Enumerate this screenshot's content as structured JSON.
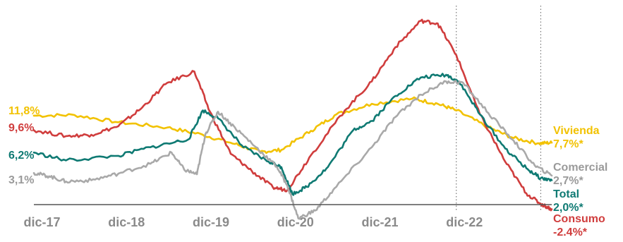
{
  "chart_data": {
    "type": "line",
    "title": "",
    "xlabel": "",
    "ylabel": "",
    "x_ticks": [
      "dic-17",
      "dic-18",
      "dic-19",
      "dic-20",
      "dic-21",
      "dic-22"
    ],
    "x_range": [
      2017.92,
      2024.05
    ],
    "y_range": [
      -6.2,
      28.5
    ],
    "grid": false,
    "vertical_reference_lines": [
      2022.92,
      2023.92
    ],
    "series": [
      {
        "name": "Vivienda",
        "color": "#f2c200",
        "start_label": "11,8%",
        "end_label": [
          "Vivienda",
          "7,7%*"
        ],
        "points": [
          [
            2017.92,
            11.8
          ],
          [
            2018.4,
            11.9
          ],
          [
            2018.92,
            10.8
          ],
          [
            2019.5,
            10.0
          ],
          [
            2019.92,
            8.9
          ],
          [
            2020.3,
            7.5
          ],
          [
            2020.6,
            6.3
          ],
          [
            2020.85,
            6.6
          ],
          [
            2021.2,
            9.5
          ],
          [
            2021.5,
            12.0
          ],
          [
            2021.92,
            13.6
          ],
          [
            2022.4,
            14.4
          ],
          [
            2022.7,
            13.6
          ],
          [
            2022.92,
            12.6
          ],
          [
            2023.3,
            10.0
          ],
          [
            2023.6,
            8.4
          ],
          [
            2023.9,
            7.6
          ],
          [
            2024.05,
            7.7
          ]
        ]
      },
      {
        "name": "Consumo",
        "color": "#d03d3d",
        "start_label": "9,6%",
        "end_label": [
          "Consumo",
          "-2.4%*"
        ],
        "points": [
          [
            2017.92,
            9.6
          ],
          [
            2018.3,
            8.7
          ],
          [
            2018.6,
            8.9
          ],
          [
            2018.92,
            10.2
          ],
          [
            2019.2,
            13.0
          ],
          [
            2019.5,
            16.8
          ],
          [
            2019.82,
            18.5
          ],
          [
            2020.0,
            12.5
          ],
          [
            2020.25,
            6.0
          ],
          [
            2020.5,
            3.4
          ],
          [
            2020.75,
            0.9
          ],
          [
            2020.92,
            0.5
          ],
          [
            2021.2,
            5.8
          ],
          [
            2021.6,
            12.6
          ],
          [
            2021.92,
            17.0
          ],
          [
            2022.2,
            22.2
          ],
          [
            2022.5,
            26.2
          ],
          [
            2022.7,
            25.8
          ],
          [
            2022.92,
            21.0
          ],
          [
            2023.2,
            12.0
          ],
          [
            2023.5,
            4.8
          ],
          [
            2023.75,
            0.0
          ],
          [
            2023.92,
            -1.6
          ],
          [
            2024.05,
            -2.4
          ]
        ]
      },
      {
        "name": "Total",
        "color": "#0f7a73",
        "start_label": "6,2%",
        "end_label": [
          "Total",
          "2,0%*"
        ],
        "points": [
          [
            2017.92,
            6.2
          ],
          [
            2018.3,
            5.0
          ],
          [
            2018.92,
            5.7
          ],
          [
            2019.3,
            7.0
          ],
          [
            2019.75,
            8.2
          ],
          [
            2019.92,
            12.6
          ],
          [
            2020.1,
            11.4
          ],
          [
            2020.4,
            7.0
          ],
          [
            2020.7,
            4.8
          ],
          [
            2020.85,
            4.0
          ],
          [
            2020.98,
            -0.1
          ],
          [
            2021.15,
            1.0
          ],
          [
            2021.4,
            4.0
          ],
          [
            2021.7,
            9.6
          ],
          [
            2021.92,
            11.0
          ],
          [
            2022.2,
            14.8
          ],
          [
            2022.5,
            17.6
          ],
          [
            2022.8,
            18.0
          ],
          [
            2022.95,
            17.0
          ],
          [
            2023.2,
            12.0
          ],
          [
            2023.5,
            6.8
          ],
          [
            2023.75,
            3.8
          ],
          [
            2023.92,
            2.3
          ],
          [
            2024.05,
            2.0
          ]
        ]
      },
      {
        "name": "Comercial",
        "color": "#a9a9a9",
        "start_label": "3,1%",
        "end_label": [
          "Comercial",
          "2,7%*"
        ],
        "points": [
          [
            2017.92,
            3.1
          ],
          [
            2018.1,
            2.6
          ],
          [
            2018.3,
            1.8
          ],
          [
            2018.6,
            2.0
          ],
          [
            2018.92,
            3.0
          ],
          [
            2019.3,
            4.5
          ],
          [
            2019.55,
            6.2
          ],
          [
            2019.7,
            3.6
          ],
          [
            2019.85,
            2.9
          ],
          [
            2019.95,
            9.0
          ],
          [
            2020.1,
            12.4
          ],
          [
            2020.3,
            10.0
          ],
          [
            2020.55,
            7.0
          ],
          [
            2020.8,
            4.0
          ],
          [
            2020.92,
            1.2
          ],
          [
            2021.05,
            -3.8
          ],
          [
            2021.25,
            -2.6
          ],
          [
            2021.5,
            1.0
          ],
          [
            2021.92,
            7.0
          ],
          [
            2022.2,
            11.6
          ],
          [
            2022.5,
            15.0
          ],
          [
            2022.8,
            17.0
          ],
          [
            2023.0,
            16.8
          ],
          [
            2023.3,
            12.2
          ],
          [
            2023.6,
            8.0
          ],
          [
            2023.85,
            4.2
          ],
          [
            2024.05,
            2.7
          ]
        ]
      }
    ]
  }
}
